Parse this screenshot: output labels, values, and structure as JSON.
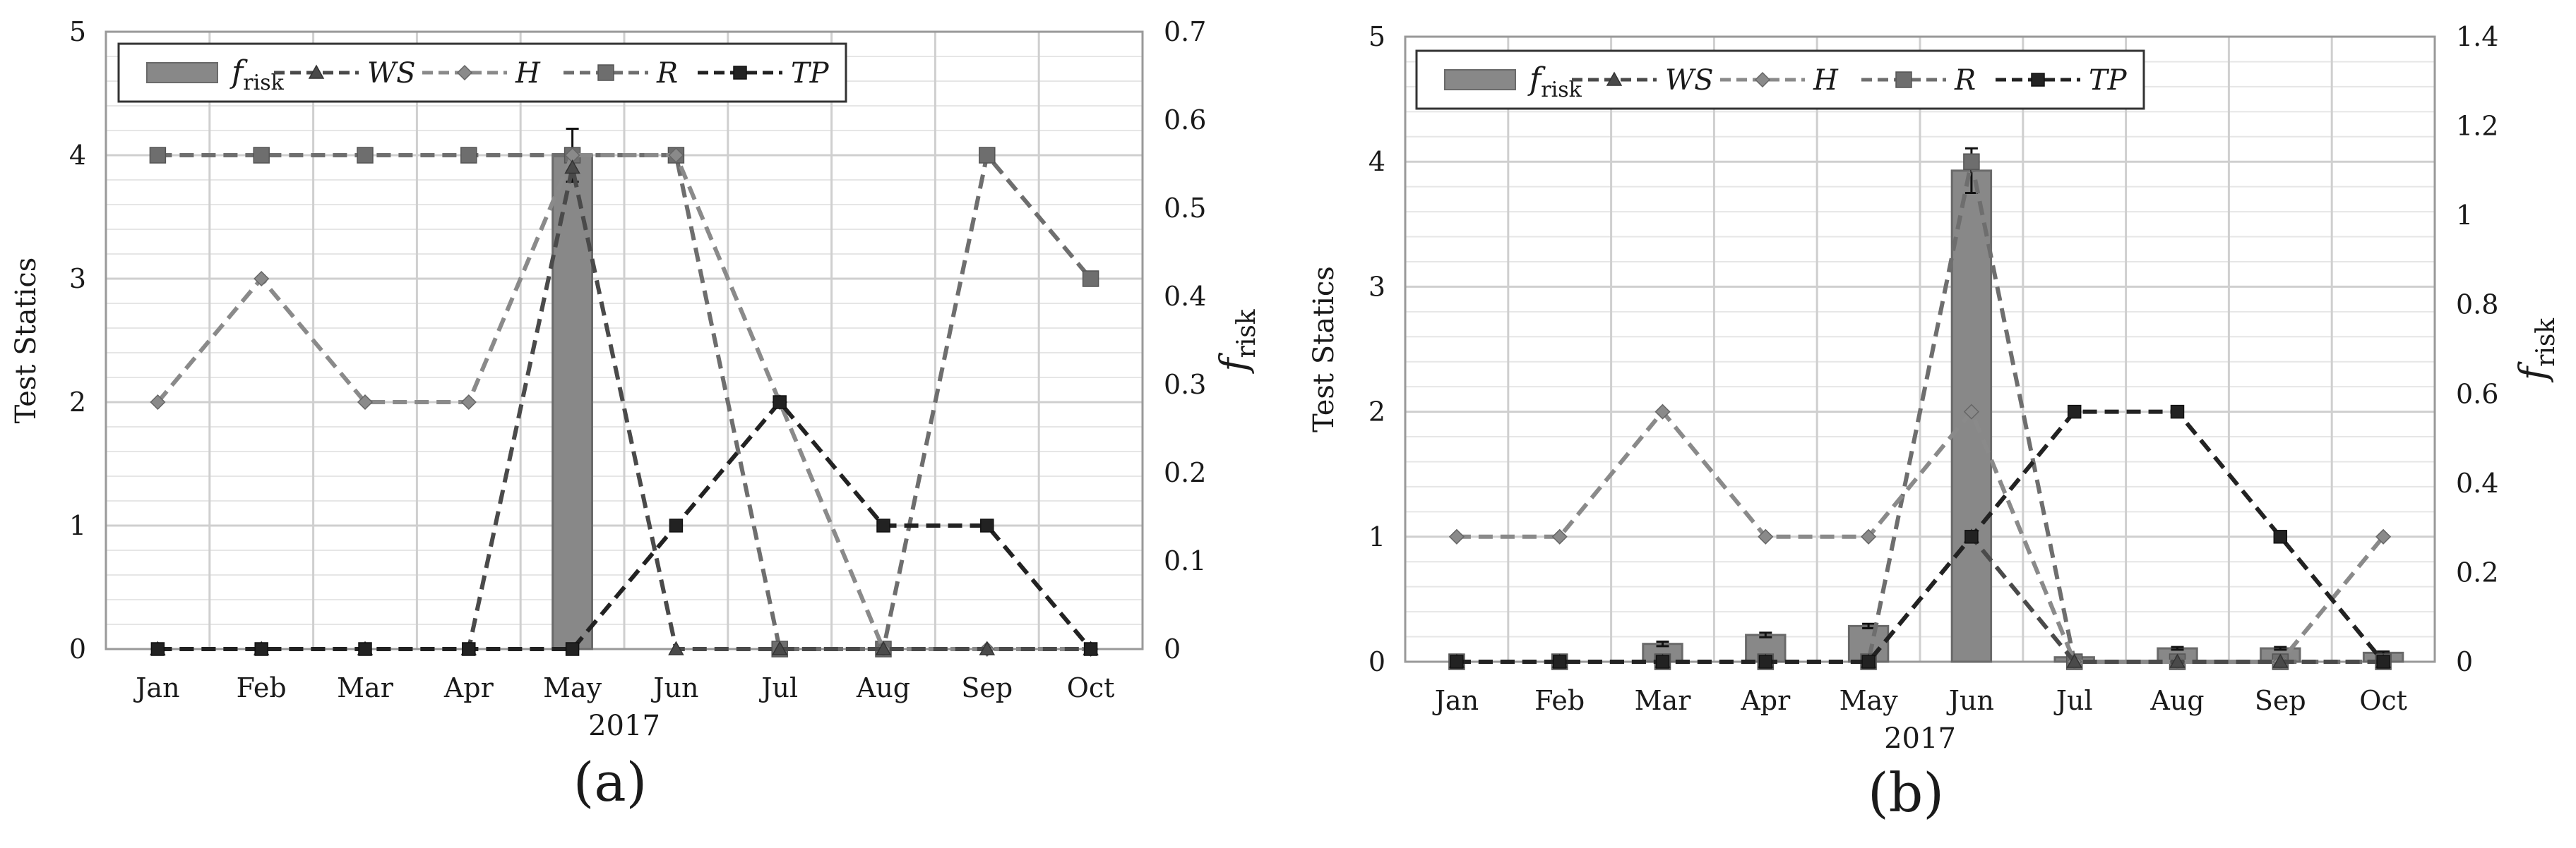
{
  "colors": {
    "background": "#ffffff",
    "grid": "#cfcfcf",
    "frame": "#999999",
    "bar": "#888888",
    "bar_edge": "#6a6a6a",
    "WS": "#4a4a4a",
    "H": "#8a8a8a",
    "R": "#6e6e6e",
    "TP": "#222222",
    "text": "#1a1a1a"
  },
  "chart_data": [
    {
      "panel_label": "(a)",
      "type": "bar+line",
      "xlabel": "2017",
      "ylabel": "Test Statics",
      "y2label_main": "f",
      "y2label_sub": "risk",
      "categories": [
        "Jan",
        "Feb",
        "Mar",
        "Apr",
        "May",
        "Jun",
        "Jul",
        "Aug",
        "Sep",
        "Oct"
      ],
      "ylim": [
        0,
        5
      ],
      "yticks": [
        "0",
        "1",
        "2",
        "3",
        "4",
        "5"
      ],
      "y2lim": [
        0,
        0.7
      ],
      "y2ticks": [
        "0",
        "0.1",
        "0.2",
        "0.3",
        "0.4",
        "0.5",
        "0.6",
        "0.7"
      ],
      "grid": true,
      "legend_position": "top-left",
      "bar_series": {
        "name": "f",
        "name_sub": "risk",
        "values": [
          0,
          0,
          0,
          0,
          0.56,
          0,
          0,
          0,
          0,
          0
        ],
        "error": [
          0,
          0,
          0,
          0,
          0.03,
          0,
          0,
          0,
          0,
          0
        ]
      },
      "line_series": [
        {
          "name": "WS",
          "marker": "triangle",
          "values": [
            0,
            0,
            0,
            0,
            3.9,
            0,
            0,
            0,
            0,
            0
          ]
        },
        {
          "name": "H",
          "marker": "diamond",
          "values": [
            2,
            3,
            2,
            2,
            4,
            4,
            2,
            0,
            0,
            0
          ]
        },
        {
          "name": "R",
          "marker": "square",
          "values": [
            4,
            4,
            4,
            4,
            4,
            4,
            0,
            0,
            4,
            3
          ]
        },
        {
          "name": "TP",
          "marker": "square-small",
          "values": [
            0,
            0,
            0,
            0,
            0,
            1,
            2,
            1,
            1,
            0
          ]
        }
      ]
    },
    {
      "panel_label": "(b)",
      "type": "bar+line",
      "xlabel": "2017",
      "ylabel": "Test Statics",
      "y2label_main": "f",
      "y2label_sub": "risk",
      "categories": [
        "Jan",
        "Feb",
        "Mar",
        "Apr",
        "May",
        "Jun",
        "Jul",
        "Aug",
        "Sep",
        "Oct"
      ],
      "ylim": [
        0,
        5
      ],
      "yticks": [
        "0",
        "1",
        "2",
        "3",
        "4",
        "5"
      ],
      "y2lim": [
        0,
        1.4
      ],
      "y2ticks": [
        "0",
        "0.2",
        "0.4",
        "0.6",
        "0.8",
        "1",
        "1.2",
        "1.4"
      ],
      "grid": true,
      "legend_position": "top-left",
      "bar_series": {
        "name": "f",
        "name_sub": "risk",
        "values": [
          0,
          0,
          0.04,
          0.06,
          0.08,
          1.1,
          0.01,
          0.03,
          0.03,
          0.02
        ],
        "error": [
          0,
          0,
          0.005,
          0.005,
          0.005,
          0.05,
          0,
          0.003,
          0.003,
          0.003
        ]
      },
      "line_series": [
        {
          "name": "WS",
          "marker": "triangle",
          "values": [
            0,
            0,
            0,
            0,
            0,
            1,
            0,
            0,
            0,
            0
          ]
        },
        {
          "name": "H",
          "marker": "diamond",
          "values": [
            1,
            1,
            2,
            1,
            1,
            2,
            0,
            0,
            0,
            1
          ]
        },
        {
          "name": "R",
          "marker": "square",
          "values": [
            0,
            0,
            0,
            0,
            0,
            4,
            0,
            0,
            0,
            0
          ]
        },
        {
          "name": "TP",
          "marker": "square-small",
          "values": [
            0,
            0,
            0,
            0,
            0,
            1,
            2,
            2,
            1,
            0
          ]
        }
      ]
    }
  ]
}
